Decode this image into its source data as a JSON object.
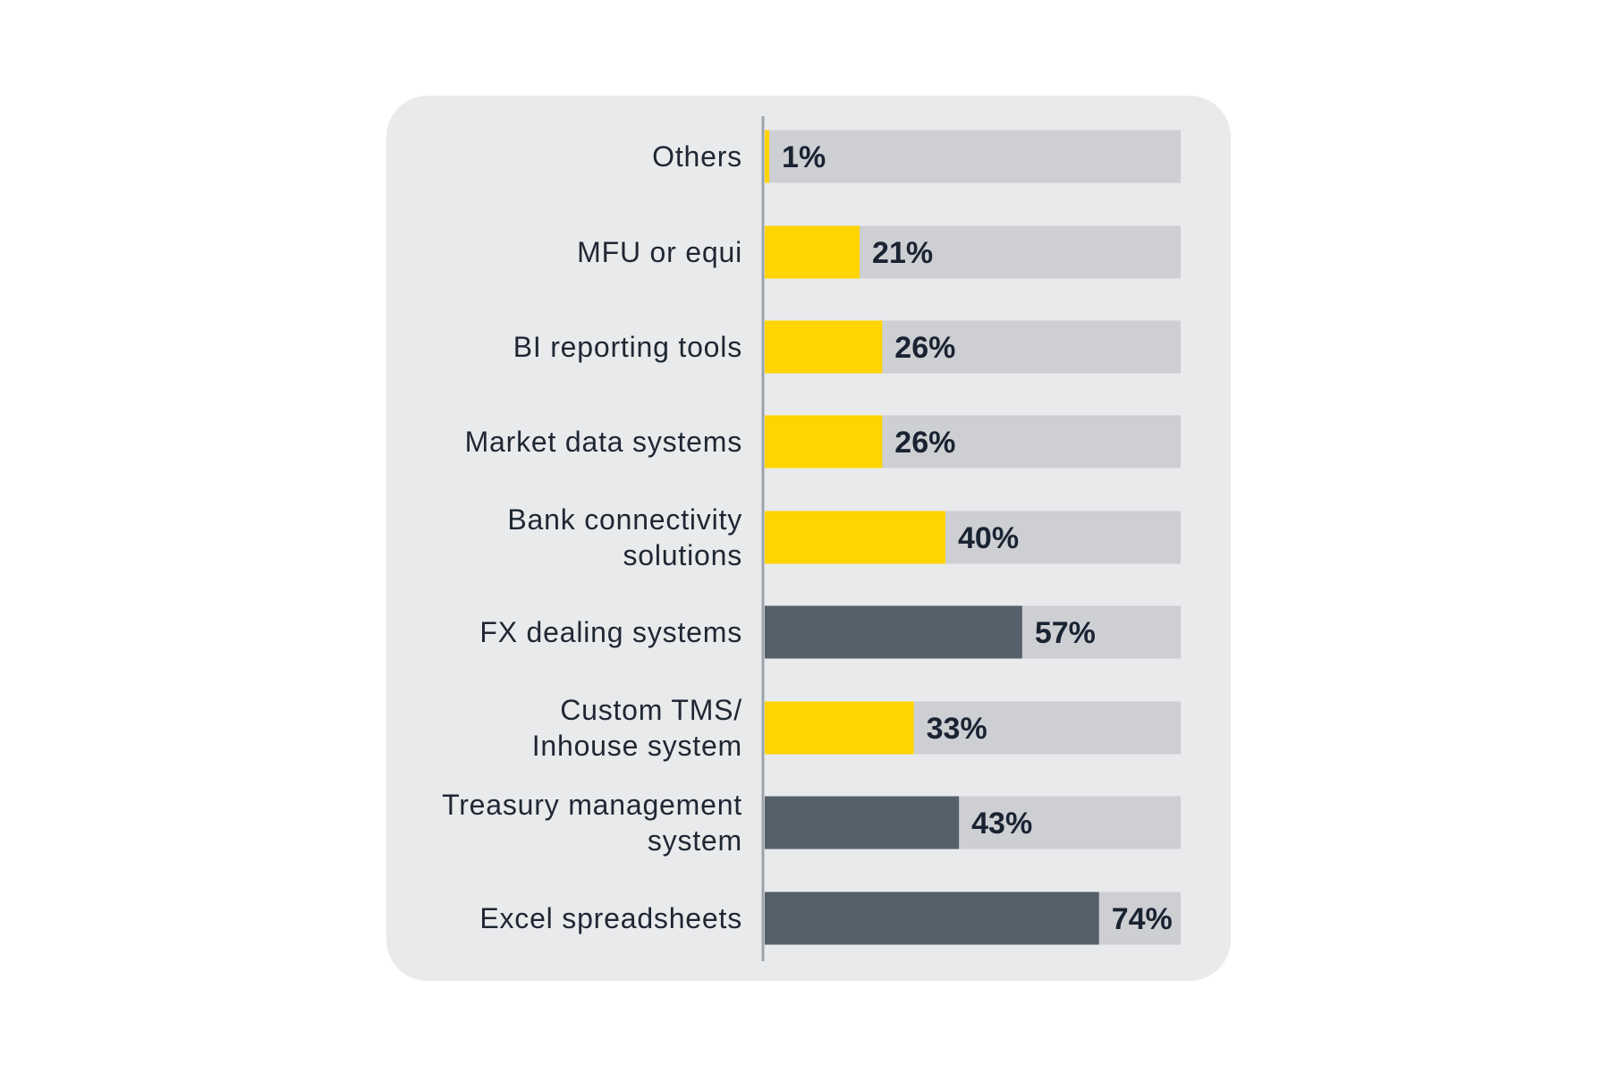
{
  "chart_data": {
    "type": "bar",
    "orientation": "horizontal",
    "categories": [
      "Others",
      "MFU or equi",
      "BI reporting tools",
      "Market data systems",
      "Bank connectivity solutions",
      "FX dealing systems",
      "Custom TMS/ Inhouse system",
      "Treasury management system",
      "Excel spreadsheets"
    ],
    "label_lines": [
      [
        "Others"
      ],
      [
        "MFU or equi"
      ],
      [
        "BI reporting tools"
      ],
      [
        "Market data systems"
      ],
      [
        "Bank connectivity",
        "solutions"
      ],
      [
        "FX dealing systems"
      ],
      [
        "Custom TMS/",
        "Inhouse system"
      ],
      [
        "Treasury management",
        "system"
      ],
      [
        "Excel spreadsheets"
      ]
    ],
    "values": [
      1,
      21,
      26,
      26,
      40,
      57,
      33,
      43,
      74
    ],
    "value_labels": [
      "1%",
      "21%",
      "26%",
      "26%",
      "40%",
      "57%",
      "33%",
      "43%",
      "74%"
    ],
    "bar_color_keys": [
      "yellow",
      "yellow",
      "yellow",
      "yellow",
      "yellow",
      "dark",
      "yellow",
      "dark",
      "dark"
    ],
    "xlim": [
      0,
      100
    ],
    "title": "",
    "xlabel": "",
    "ylabel": "",
    "grid": false,
    "legend": "none",
    "colors": {
      "yellow": "#FFD400",
      "dark": "#55606B",
      "track": "#CDCFD3",
      "panel": "#E9EAEC",
      "axis": "#9BA3AB",
      "text": "#1F2733"
    }
  }
}
